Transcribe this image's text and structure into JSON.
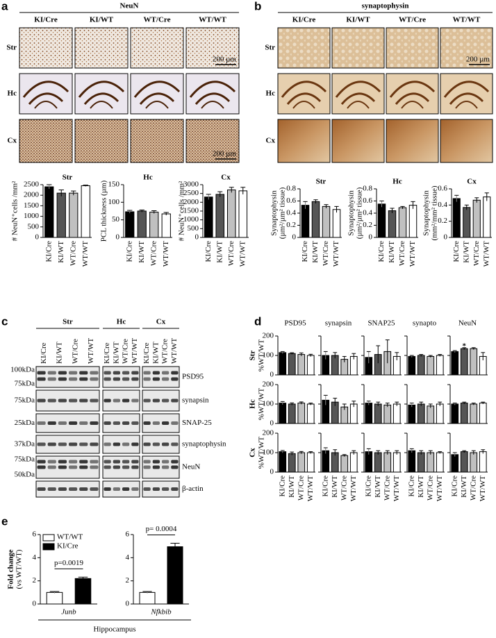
{
  "panel_a": {
    "letter": "a",
    "title": "NeuN",
    "columns": [
      "KI/Cre",
      "KI/WT",
      "WT/Cre",
      "WT/WT"
    ],
    "rows": [
      "Str",
      "Hc",
      "Cx"
    ],
    "scale_bar": "200 µm"
  },
  "panel_b": {
    "letter": "b",
    "title": "synaptophysin",
    "columns": [
      "KI/Cre",
      "KI/WT",
      "WT/Cre",
      "WT/WT"
    ],
    "rows": [
      "Str",
      "Hc",
      "Cx"
    ],
    "scale_bar": "200 µm"
  },
  "panel_c": {
    "letter": "c",
    "groups": [
      "Str",
      "Hc",
      "Cx"
    ],
    "lanes": [
      [
        "KI/Cre",
        "KI/WT",
        "WT/Cre",
        "WT/WT"
      ],
      [
        "KI/Cre",
        "KI/WT",
        "WT/Cre",
        "WT/WT"
      ],
      [
        "KI/Cre",
        "KI/WT",
        "WT/Cre",
        "WT/WT"
      ]
    ],
    "blots": [
      {
        "protein": "PSD95",
        "markers": [
          "100kDa",
          "75kDa"
        ]
      },
      {
        "protein": "synapsin",
        "markers": [
          "75kDa"
        ]
      },
      {
        "protein": "SNAP-25",
        "markers": [
          "25kDa"
        ]
      },
      {
        "protein": "synaptophysin",
        "markers": [
          "37kDa"
        ]
      },
      {
        "protein": "NeuN",
        "markers": [
          "75kDa",
          "50kDa"
        ]
      },
      {
        "protein": "β-actin",
        "markers": []
      }
    ]
  },
  "panel_d": {
    "letter": "d",
    "columns": [
      "PSD95",
      "synapsin",
      "SNAP25",
      "synapto",
      "NeuN"
    ],
    "rows": [
      "Str",
      "Hc",
      "Cx"
    ],
    "y_label": "%WT/WT",
    "categories": [
      "KI/Cre",
      "KI/WT",
      "WT/Cre",
      "WT/WT"
    ]
  },
  "panel_e": {
    "letter": "e",
    "legend": [
      "WT/WT",
      "KI/Cre"
    ],
    "colors": [
      "#ffffff",
      "#000000"
    ],
    "y_label": [
      "Fold change",
      "(vs WT/WT)"
    ],
    "group_label": "Hippocampus"
  },
  "bar_colors": [
    "#000000",
    "#555555",
    "#c0c0c0",
    "#ffffff"
  ],
  "chart_data": [
    {
      "type": "bar",
      "title": "Str",
      "y_label": [
        "# NeuN⁺cells /mm²"
      ],
      "categories": [
        "KI/Cre",
        "KI/WT",
        "WT/Cre",
        "WT/WT"
      ],
      "values": [
        2400,
        2100,
        2100,
        2450
      ],
      "errors": [
        100,
        150,
        100,
        30
      ],
      "ylim": [
        0,
        2500
      ],
      "yticks": [
        0,
        500,
        1000,
        1500,
        2000,
        2500
      ]
    },
    {
      "type": "bar",
      "title": "Hc",
      "y_label": [
        "PCL thickness (µm)"
      ],
      "categories": [
        "KI/Cre",
        "KI/WT",
        "WT/Cre",
        "WT/WT"
      ],
      "values": [
        73,
        75,
        72,
        67
      ],
      "errors": [
        4,
        3,
        4,
        4
      ],
      "ylim": [
        0,
        150
      ],
      "yticks": [
        0,
        50,
        100,
        150
      ]
    },
    {
      "type": "bar",
      "title": "Cx",
      "y_label": [
        "# NeuN⁺cells /mm²"
      ],
      "categories": [
        "KI/Cre",
        "KI/WT",
        "WT/Cre",
        "WT/WT"
      ],
      "values": [
        2300,
        2450,
        2700,
        2650
      ],
      "errors": [
        150,
        150,
        150,
        200
      ],
      "ylim": [
        0,
        3000
      ],
      "yticks": [
        0,
        500,
        1000,
        1500,
        2000,
        2500,
        3000
      ]
    },
    {
      "type": "bar",
      "title": "Str",
      "y_label": [
        "Synaptophysin",
        "(µm²/µm² tissue)"
      ],
      "categories": [
        "KI/Cre",
        "KI/WT",
        "WT/Cre",
        "WT/WT"
      ],
      "values": [
        0.53,
        0.59,
        0.51,
        0.46
      ],
      "errors": [
        0.06,
        0.03,
        0.03,
        0.05
      ],
      "ylim": [
        0,
        0.8
      ],
      "yticks": [
        0,
        0.2,
        0.4,
        0.6,
        0.8
      ]
    },
    {
      "type": "bar",
      "title": "Hc",
      "y_label": [
        "Synaptophysin",
        "(µm²/µm² tissue)"
      ],
      "categories": [
        "KI/Cre",
        "KI/WT",
        "WT/Cre",
        "WT/WT"
      ],
      "values": [
        0.55,
        0.44,
        0.49,
        0.53
      ],
      "errors": [
        0.05,
        0.04,
        0.02,
        0.06
      ],
      "ylim": [
        0,
        0.8
      ],
      "yticks": [
        0,
        0.2,
        0.4,
        0.6,
        0.8
      ]
    },
    {
      "type": "bar",
      "title": "Cx",
      "y_label": [
        "Synaptophysin",
        "(mm²/mm² tissue)"
      ],
      "categories": [
        "KI/Cre",
        "KI/WT",
        "WT/Cre",
        "WT/WT"
      ],
      "values": [
        0.48,
        0.37,
        0.46,
        0.5
      ],
      "errors": [
        0.04,
        0.03,
        0.03,
        0.05
      ],
      "ylim": [
        0,
        0.6
      ],
      "yticks": [
        0,
        0.2,
        0.4,
        0.6
      ]
    },
    {
      "type": "bar",
      "values": [
        115,
        110,
        105,
        100
      ],
      "errors": [
        5,
        4,
        8,
        6
      ],
      "ylim": [
        0,
        200
      ],
      "yticks": [
        0,
        100,
        200
      ]
    },
    {
      "type": "bar",
      "values": [
        100,
        100,
        80,
        95
      ],
      "errors": [
        20,
        15,
        15,
        15
      ],
      "ylim": [
        0,
        200
      ],
      "yticks": [
        0,
        100,
        200
      ]
    },
    {
      "type": "bar",
      "values": [
        90,
        105,
        120,
        95
      ],
      "errors": [
        30,
        45,
        60,
        20
      ],
      "ylim": [
        0,
        200
      ],
      "yticks": [
        0,
        100,
        200
      ]
    },
    {
      "type": "bar",
      "values": [
        95,
        100,
        95,
        100
      ],
      "errors": [
        5,
        5,
        5,
        5
      ],
      "ylim": [
        0,
        200
      ],
      "yticks": [
        0,
        100,
        200
      ]
    },
    {
      "type": "bar",
      "values": [
        120,
        135,
        135,
        95
      ],
      "errors": [
        5,
        5,
        5,
        20
      ],
      "ylim": [
        0,
        200
      ],
      "yticks": [
        0,
        100,
        200
      ],
      "annotations": [
        {
          "text": "*",
          "index": 1
        }
      ]
    },
    {
      "type": "bar",
      "values": [
        105,
        100,
        105,
        100
      ],
      "errors": [
        8,
        6,
        6,
        5
      ],
      "ylim": [
        0,
        200
      ],
      "yticks": [
        0,
        100,
        200
      ]
    },
    {
      "type": "bar",
      "values": [
        120,
        110,
        85,
        100
      ],
      "errors": [
        25,
        20,
        15,
        15
      ],
      "ylim": [
        0,
        200
      ],
      "yticks": [
        0,
        100,
        200
      ]
    },
    {
      "type": "bar",
      "values": [
        105,
        100,
        95,
        100
      ],
      "errors": [
        10,
        10,
        10,
        10
      ],
      "ylim": [
        0,
        200
      ],
      "yticks": [
        0,
        100,
        200
      ]
    },
    {
      "type": "bar",
      "values": [
        95,
        100,
        90,
        100
      ],
      "errors": [
        10,
        10,
        10,
        10
      ],
      "ylim": [
        0,
        200
      ],
      "yticks": [
        0,
        100,
        200
      ]
    },
    {
      "type": "bar",
      "values": [
        100,
        105,
        100,
        105
      ],
      "errors": [
        5,
        5,
        5,
        5
      ],
      "ylim": [
        0,
        200
      ],
      "yticks": [
        0,
        100,
        200
      ]
    },
    {
      "type": "bar",
      "values": [
        105,
        95,
        100,
        100
      ],
      "errors": [
        6,
        8,
        6,
        5
      ],
      "ylim": [
        0,
        200
      ],
      "yticks": [
        0,
        100,
        200
      ]
    },
    {
      "type": "bar",
      "values": [
        110,
        100,
        85,
        100
      ],
      "errors": [
        15,
        15,
        5,
        10
      ],
      "ylim": [
        0,
        200
      ],
      "yticks": [
        0,
        100,
        200
      ]
    },
    {
      "type": "bar",
      "values": [
        105,
        100,
        100,
        100
      ],
      "errors": [
        15,
        10,
        10,
        10
      ],
      "ylim": [
        0,
        200
      ],
      "yticks": [
        0,
        100,
        200
      ]
    },
    {
      "type": "bar",
      "values": [
        110,
        100,
        100,
        100
      ],
      "errors": [
        10,
        10,
        10,
        5
      ],
      "ylim": [
        0,
        200
      ],
      "yticks": [
        0,
        100,
        200
      ]
    },
    {
      "type": "bar",
      "values": [
        90,
        105,
        100,
        105
      ],
      "errors": [
        10,
        5,
        10,
        10
      ],
      "ylim": [
        0,
        200
      ],
      "yticks": [
        0,
        100,
        200
      ]
    },
    {
      "type": "bar",
      "x_label": "Junb",
      "values": [
        1.0,
        2.2
      ],
      "errors": [
        0.08,
        0.12
      ],
      "ylim": [
        0,
        6
      ],
      "yticks": [
        0,
        2,
        4,
        6
      ],
      "annotation": "p=0.0019"
    },
    {
      "type": "bar",
      "x_label": "Nfkbib",
      "values": [
        1.0,
        4.95
      ],
      "errors": [
        0.08,
        0.3
      ],
      "ylim": [
        0,
        6
      ],
      "yticks": [
        0,
        2,
        4,
        6
      ],
      "annotation": "p= 0.0004"
    }
  ]
}
